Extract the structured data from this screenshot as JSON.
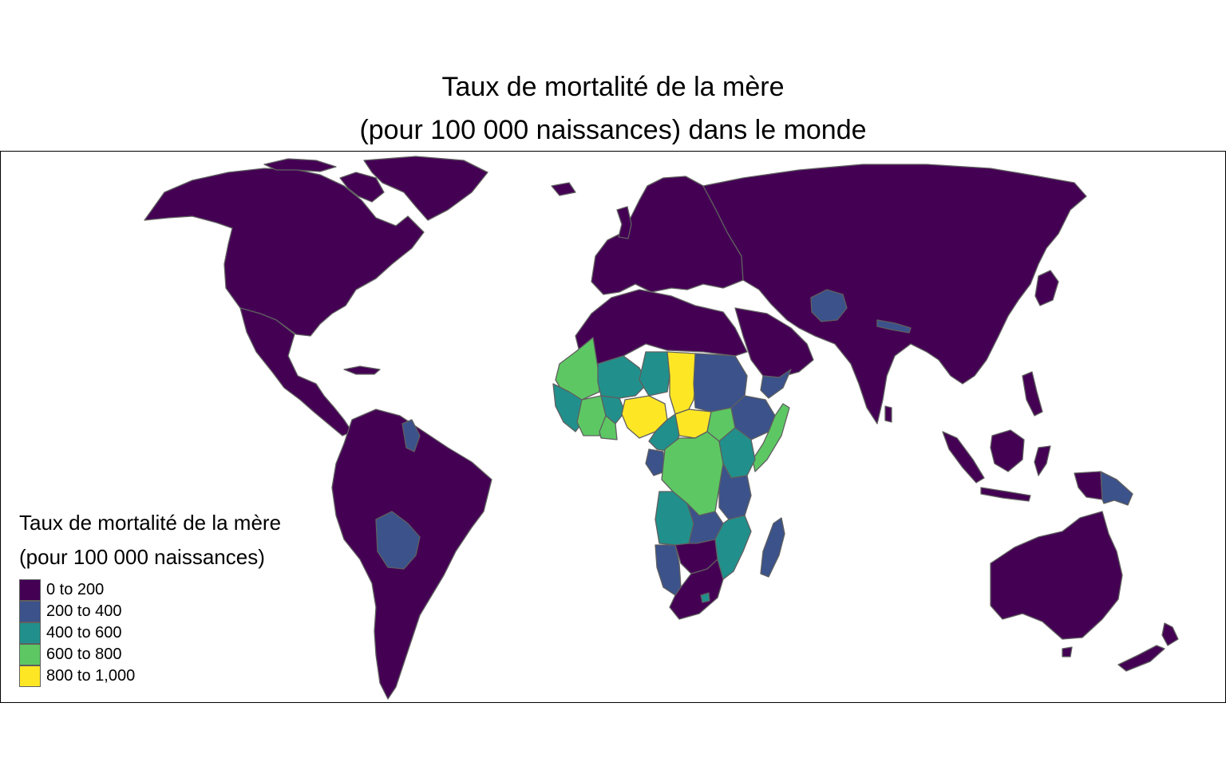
{
  "title": {
    "line1": "Taux de mortalité de la mère",
    "line2": "(pour 100 000 naissances) dans le monde"
  },
  "legend": {
    "title_line1": "Taux de mortalité de la mère",
    "title_line2": "(pour 100 000 naissances)",
    "items": [
      {
        "label": "0 to 200",
        "color": "#440154"
      },
      {
        "label": "200 to 400",
        "color": "#3b528b"
      },
      {
        "label": "400 to 600",
        "color": "#21908c"
      },
      {
        "label": "600 to 800",
        "color": "#5dc863"
      },
      {
        "label": "800 to 1,000",
        "color": "#fde725"
      }
    ]
  },
  "colors": {
    "class_0_200": "#440154",
    "class_200_400": "#3b528b",
    "class_400_600": "#21908c",
    "class_600_800": "#5dc863",
    "class_800_1000": "#fde725",
    "border": "#5f5f5f",
    "frame": "#000000",
    "background": "#ffffff"
  },
  "regions": [
    {
      "name": "Amérique du Nord",
      "class": 0
    },
    {
      "name": "Groenland",
      "class": 0
    },
    {
      "name": "Mexique et Amérique centrale",
      "class": 0
    },
    {
      "name": "Amérique du Sud",
      "class": 0
    },
    {
      "name": "Bolivie",
      "class": 1
    },
    {
      "name": "Guyana",
      "class": 1
    },
    {
      "name": "Europe",
      "class": 0
    },
    {
      "name": "Russie et Asie",
      "class": 0
    },
    {
      "name": "Afghanistan",
      "class": 1
    },
    {
      "name": "Népal",
      "class": 1
    },
    {
      "name": "Afrique du Nord",
      "class": 0
    },
    {
      "name": "Mauritanie",
      "class": 3
    },
    {
      "name": "Mali",
      "class": 2
    },
    {
      "name": "Niger",
      "class": 2
    },
    {
      "name": "Tchad",
      "class": 4
    },
    {
      "name": "Nigéria",
      "class": 4
    },
    {
      "name": "Centrafrique",
      "class": 4
    },
    {
      "name": "Soudan",
      "class": 1
    },
    {
      "name": "Soudan du Sud",
      "class": 3
    },
    {
      "name": "Éthiopie",
      "class": 1
    },
    {
      "name": "Somalie",
      "class": 3
    },
    {
      "name": "Kenya",
      "class": 2
    },
    {
      "name": "RD Congo",
      "class": 3
    },
    {
      "name": "Angola",
      "class": 2
    },
    {
      "name": "Tanzanie",
      "class": 1
    },
    {
      "name": "Zambie",
      "class": 1
    },
    {
      "name": "Mozambique",
      "class": 2
    },
    {
      "name": "Namibie",
      "class": 1
    },
    {
      "name": "Botswana",
      "class": 0
    },
    {
      "name": "Afrique du Sud",
      "class": 0
    },
    {
      "name": "Madagascar",
      "class": 1
    },
    {
      "name": "Cameroun",
      "class": 2
    },
    {
      "name": "Ghana",
      "class": 3
    },
    {
      "name": "Côte d'Ivoire",
      "class": 3
    },
    {
      "name": "Burkina Faso",
      "class": 2
    },
    {
      "name": "Guinée",
      "class": 2
    },
    {
      "name": "Gabon",
      "class": 1
    },
    {
      "name": "Asie du Sud-Est",
      "class": 0
    },
    {
      "name": "Indonésie",
      "class": 0
    },
    {
      "name": "Papouasie-Nouvelle-Guinée",
      "class": 1
    },
    {
      "name": "Australie",
      "class": 0
    },
    {
      "name": "Nouvelle-Zélande",
      "class": 0
    }
  ]
}
